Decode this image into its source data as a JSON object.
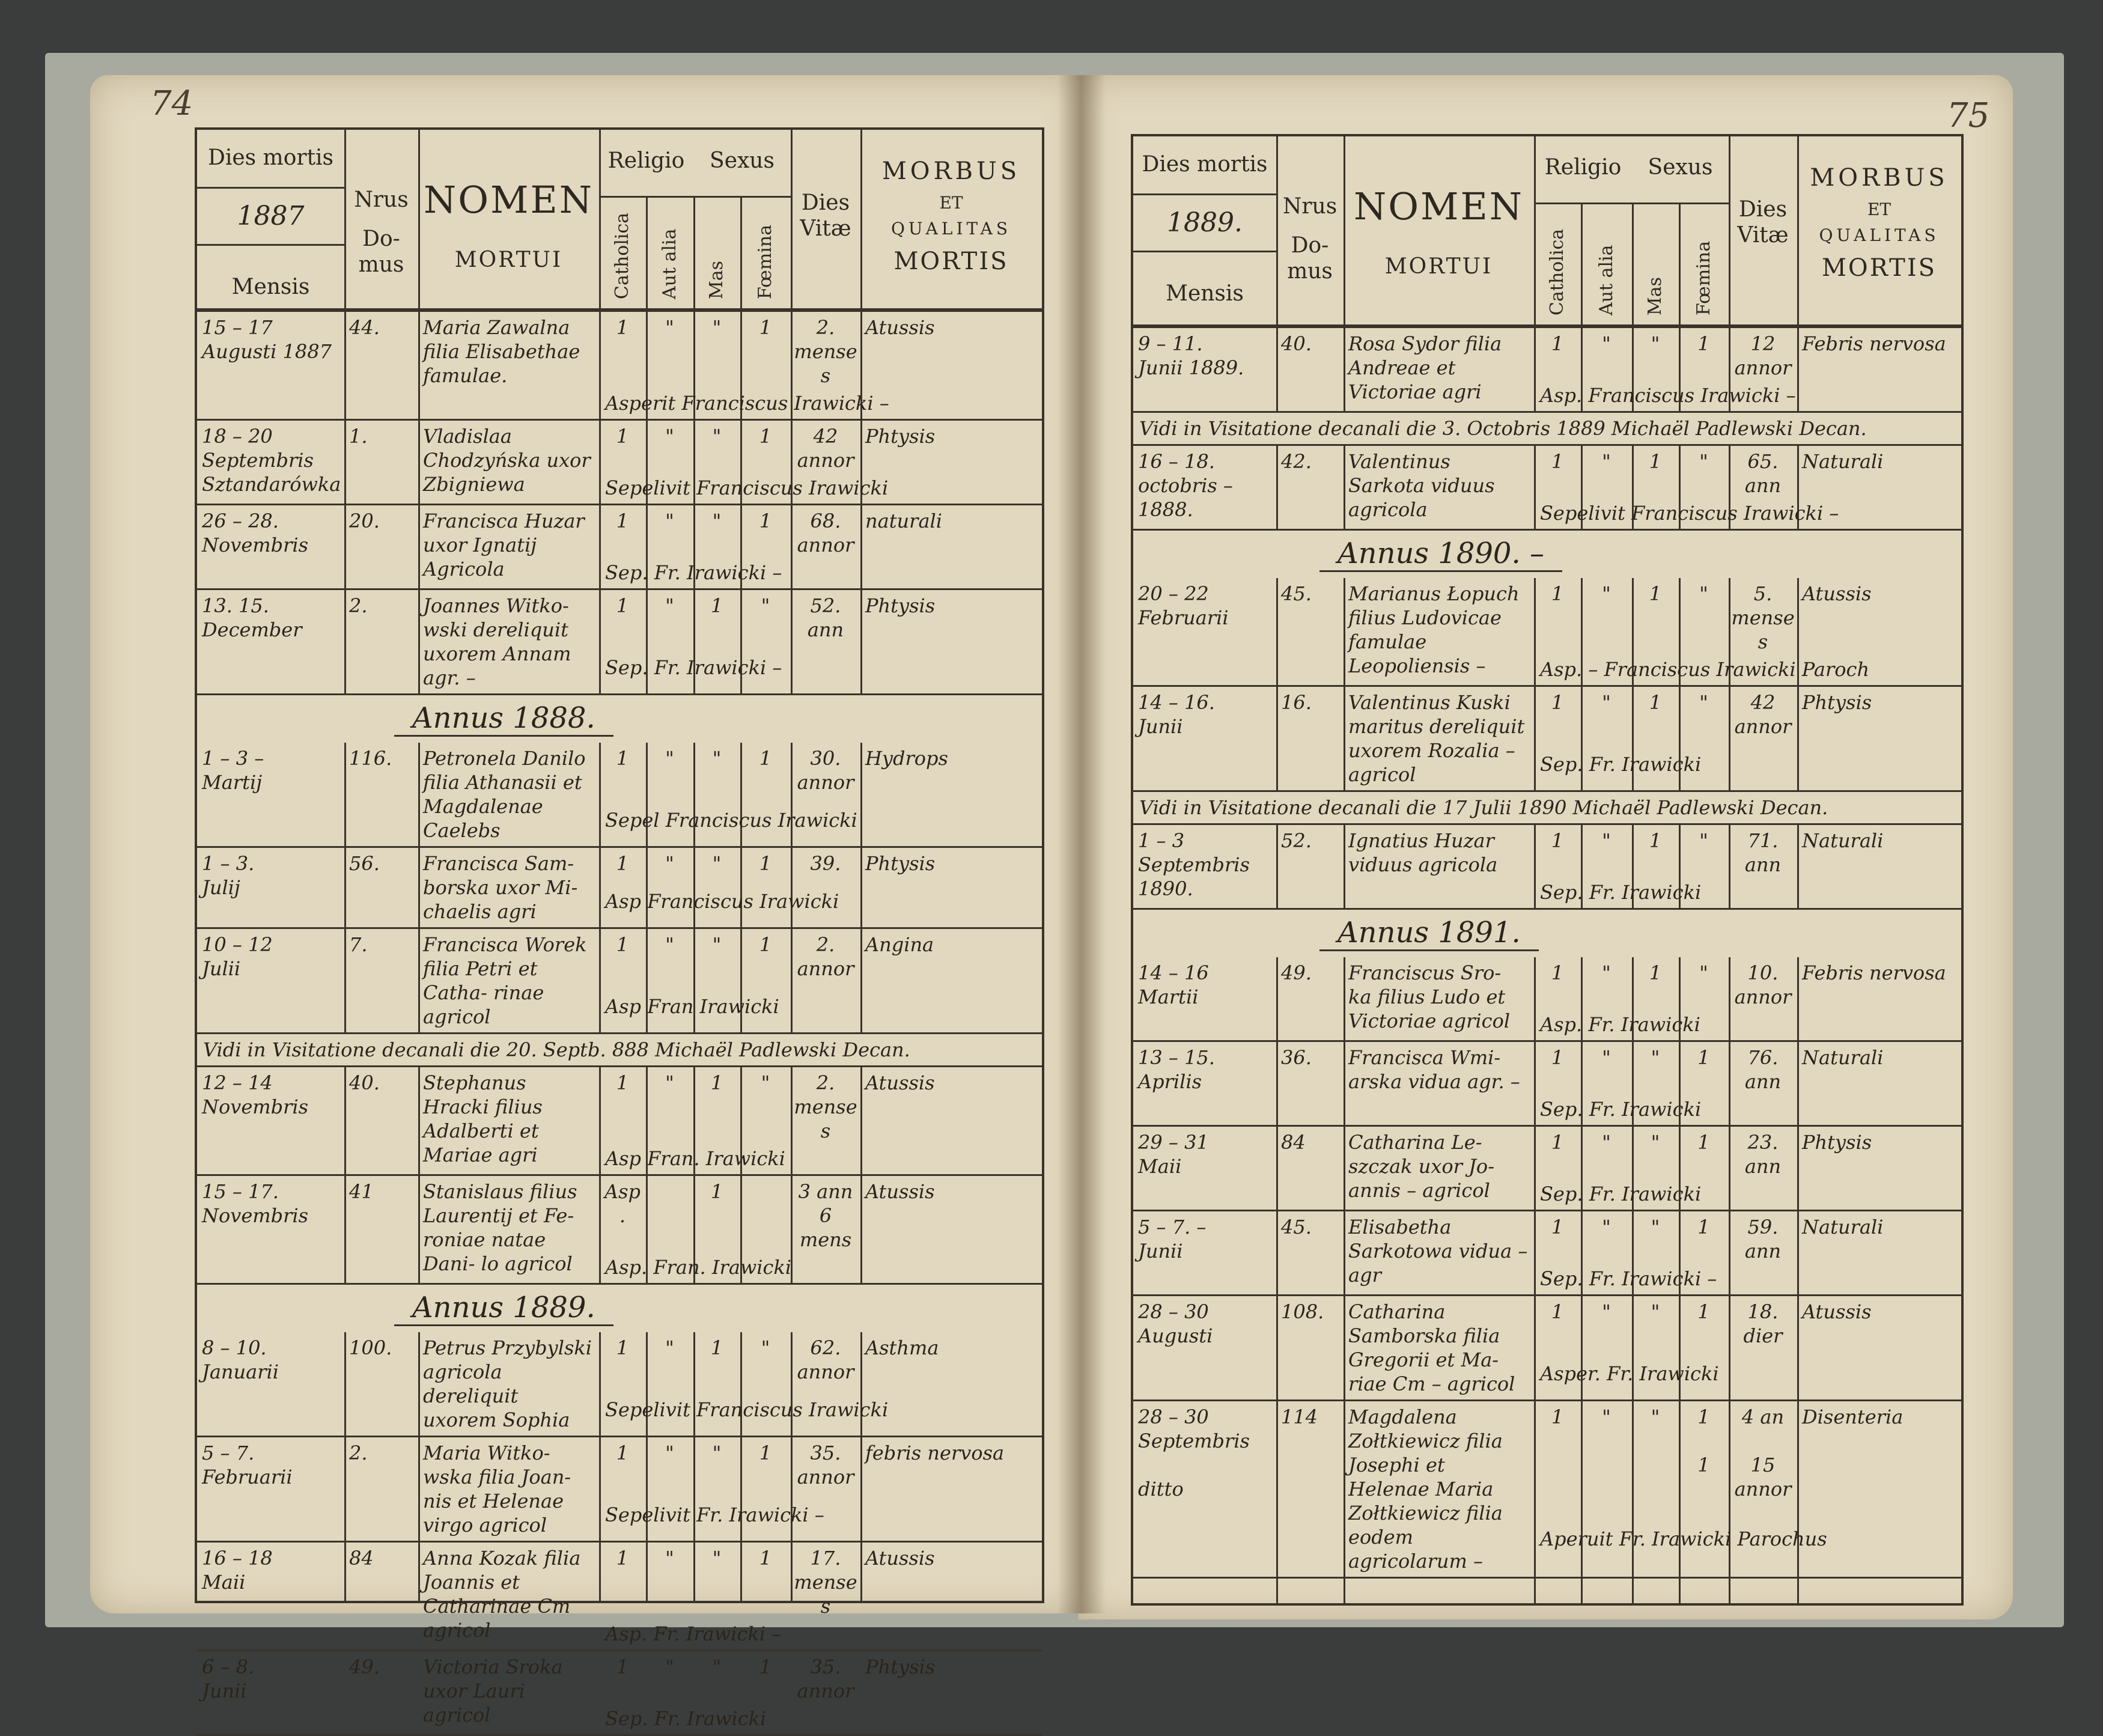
{
  "header": {
    "dies_mortis": "Dies mortis",
    "mensis": "Mensis",
    "nrus": "Nrus",
    "domus": "Do-\nmus",
    "nomen": "NOMEN",
    "mortui": "MORTUI",
    "religio": "Religio",
    "sexus": "Sexus",
    "catholica": "Catholica",
    "aut_alia": "Aut alia",
    "mas": "Mas",
    "foemina": "Fœmina",
    "dies_vitae": "Dies\nVitæ",
    "morbus": "MORBUS",
    "et": "ET",
    "qualitas": "QUALITAS",
    "mortis": "MORTIS"
  },
  "left": {
    "page_number": "74",
    "year": "1887",
    "rows": [
      {
        "date": "15 – 17\nAugusti 1887",
        "house": "44.",
        "name": "Maria Zawalna\nfilia Elisabethae\nfamulae.",
        "cath": "1",
        "alia": "\"",
        "mas": "\"",
        "fem": "1",
        "vitae": "2.\nmenses",
        "morbus": "Atussis",
        "note": "Asperit Franciscus Irawicki –"
      },
      {
        "date": "18 – 20\nSeptembris\nSztandarówka",
        "house": "1.",
        "name": "Vladislaa Chodzyńska uxor\nZbigniewa",
        "cath": "1",
        "alia": "\"",
        "mas": "\"",
        "fem": "1",
        "vitae": "42\nannor",
        "morbus": "Phtysis",
        "note": "Sepelivit Franciscus Irawicki"
      },
      {
        "date": "26 – 28.\nNovembris",
        "house": "20.",
        "name": "Francisca Huzar\nuxor Ignatij\nAgricola",
        "cath": "1",
        "alia": "\"",
        "mas": "\"",
        "fem": "1",
        "vitae": "68.\nannor",
        "morbus": "naturali",
        "note": "Sep. Fr. Irawicki –"
      },
      {
        "date": "13. 15.\nDecember",
        "house": "2.",
        "name": "Joannes Witko-\nwski dereliquit\nuxorem Annam\nagr. –",
        "cath": "1",
        "alia": "\"",
        "mas": "1",
        "fem": "\"",
        "vitae": "52.\nann",
        "morbus": "Phtysis",
        "note": "Sep. Fr. Irawicki –"
      },
      {
        "annus": "Annus 1888."
      },
      {
        "date": "1 – 3 –\nMartij",
        "house": "116.",
        "name": "Petronela Danilo\nfilia Athanasii\net Magdalenae\nCaelebs",
        "cath": "1",
        "alia": "\"",
        "mas": "\"",
        "fem": "1",
        "vitae": "30.\nannor",
        "morbus": "Hydrops",
        "note": "Sepel Franciscus Irawicki"
      },
      {
        "date": "1 – 3.\nJulij",
        "house": "56.",
        "name": "Francisca Sam-\nborska uxor Mi-\nchaelis agri",
        "cath": "1",
        "alia": "\"",
        "mas": "\"",
        "fem": "1",
        "vitae": "39.",
        "morbus": "Phtysis",
        "note": "Asp Franciscus Irawicki"
      },
      {
        "date": "10 – 12\nJulii",
        "house": "7.",
        "name": "Francisca Worek\nfilia Petri et Catha-\nrinae agricol",
        "cath": "1",
        "alia": "\"",
        "mas": "\"",
        "fem": "1",
        "vitae": "2.\nannor",
        "morbus": "Angina",
        "note": "Asp Fran Irawicki"
      },
      {
        "visit": "Vidi in Visitatione decanali die 20. Septb. 888 Michaël Padlewski Decan."
      },
      {
        "date": "12 – 14\nNovembris",
        "house": "40.",
        "name": "Stephanus\nHracki filius\nAdalberti et\nMariae agri",
        "cath": "1",
        "alia": "\"",
        "mas": "1",
        "fem": "\"",
        "vitae": "2.\nmenses",
        "morbus": "Atussis",
        "note": "Asp Fran. Irawicki"
      },
      {
        "date": "15 – 17.\nNovembris",
        "house": "41",
        "name": "Stanislaus filius\nLaurentij et Fe-\nroniae natae Dani-\nlo agricol",
        "cath": "Asp.",
        "alia": "",
        "mas": "1",
        "fem": "",
        "vitae": "3 ann\n6 mens",
        "morbus": "Atussis",
        "note": "Asp. Fran. Irawicki"
      },
      {
        "annus": "Annus 1889."
      },
      {
        "date": "8 – 10.\nJanuarii",
        "house": "100.",
        "name": "Petrus Przybylski\nagricola dereliquit\nuxorem Sophia",
        "cath": "1",
        "alia": "\"",
        "mas": "1",
        "fem": "\"",
        "vitae": "62.\nannor",
        "morbus": "Asthma",
        "note": "Sepelivit Franciscus Irawicki"
      },
      {
        "date": "5 – 7.\nFebruarii",
        "house": "2.",
        "name": "Maria Witko-\nwska filia Joan-\nnis et Helenae\nvirgo agricol",
        "cath": "1",
        "alia": "\"",
        "mas": "\"",
        "fem": "1",
        "vitae": "35.\nannor",
        "morbus": "febris nervosa",
        "note": "Sepelivit Fr. Irawicki –"
      },
      {
        "date": "16 – 18\nMaii",
        "house": "84",
        "name": "Anna Kozak\nfilia Joannis et\nCatharinae Cm\nagricol",
        "cath": "1",
        "alia": "\"",
        "mas": "\"",
        "fem": "1",
        "vitae": "17.\nmenses",
        "morbus": "Atussis",
        "note": "Asp. Fr. Irawicki –"
      },
      {
        "date": "6 – 8.\nJunii",
        "house": "49.",
        "name": "Victoria Sroka\nuxor Lauri agricol",
        "cath": "1",
        "alia": "\"",
        "mas": "\"",
        "fem": "1",
        "vitae": "35.\nannor",
        "morbus": "Phtysis",
        "note": "Sep. Fr. Irawicki"
      }
    ]
  },
  "right": {
    "page_number": "75",
    "year": "1889.",
    "rows": [
      {
        "date": "9 – 11.\nJunii 1889.",
        "house": "40.",
        "name": "Rosa Sydor\nfilia Andreae\net Victoriae agri",
        "cath": "1",
        "alia": "\"",
        "mas": "\"",
        "fem": "1",
        "vitae": "12\nannor",
        "morbus": "Febris nervosa",
        "note": "Asp. Franciscus Irawicki –"
      },
      {
        "visit": "Vidi in Visitatione decanali die 3. Octobris 1889  Michaël Padlewski Decan."
      },
      {
        "date": "16 – 18.\noctobris –\n1888.",
        "house": "42.",
        "name": "Valentinus\nSarkota viduus\nagricola",
        "cath": "1",
        "alia": "\"",
        "mas": "1",
        "fem": "\"",
        "vitae": "65.\nann",
        "morbus": "Naturali",
        "note": "Sepelivit Franciscus Irawicki –"
      },
      {
        "annus": "Annus 1890. –"
      },
      {
        "date": "20 – 22\nFebruarii",
        "house": "45.",
        "name": "Marianus\nŁopuch filius\nLudovicae famulae\nLeopoliensis –",
        "cath": "1",
        "alia": "\"",
        "mas": "1",
        "fem": "\"",
        "vitae": "5.\nmenses",
        "morbus": "Atussis",
        "note": "Asp. – Franciscus Irawicki Paroch"
      },
      {
        "date": "14 – 16.\nJunii",
        "house": "16.",
        "name": "Valentinus\nKuski maritus\ndereliquit uxorem\nRozalia – agricol",
        "cath": "1",
        "alia": "\"",
        "mas": "1",
        "fem": "\"",
        "vitae": "42\nannor",
        "morbus": "Phtysis",
        "note": "Sep. Fr. Irawicki"
      },
      {
        "visit": "Vidi in Visitatione decanali die 17 Julii 1890  Michaël Padlewski Decan."
      },
      {
        "date": "1 – 3\nSeptembris\n1890.",
        "house": "52.",
        "name": "Ignatius\nHuzar viduus\nagricola",
        "cath": "1",
        "alia": "\"",
        "mas": "1",
        "fem": "\"",
        "vitae": "71.\nann",
        "morbus": "Naturali",
        "note": "Sep. Fr. Irawicki"
      },
      {
        "annus": "Annus 1891."
      },
      {
        "date": "14 – 16\nMartii",
        "house": "49.",
        "name": "Franciscus Sro-\nka filius Ludo\net Victoriae agricol",
        "cath": "1",
        "alia": "\"",
        "mas": "1",
        "fem": "\"",
        "vitae": "10.\nannor",
        "morbus": "Febris nervosa",
        "note": "Asp. Fr. Irawicki"
      },
      {
        "date": "13 – 15.\nAprilis",
        "house": "36.",
        "name": "Francisca Wmi-\narska vidua\nagr. –",
        "cath": "1",
        "alia": "\"",
        "mas": "\"",
        "fem": "1",
        "vitae": "76.\nann",
        "morbus": "Naturali",
        "note": "Sep. Fr. Irawicki"
      },
      {
        "date": "29 – 31\nMaii",
        "house": "84",
        "name": "Catharina Le-\nszczak uxor Jo-\nannis – agricol",
        "cath": "1",
        "alia": "\"",
        "mas": "\"",
        "fem": "1",
        "vitae": "23.\nann",
        "morbus": "Phtysis",
        "note": "Sep. Fr. Irawicki"
      },
      {
        "date": "5 – 7. –\nJunii",
        "house": "45.",
        "name": "Elisabetha\nSarkotowa\nvidua – agr",
        "cath": "1",
        "alia": "\"",
        "mas": "\"",
        "fem": "1",
        "vitae": "59.\nann",
        "morbus": "Naturali",
        "note": "Sep. Fr. Irawicki –"
      },
      {
        "date": "28 – 30\nAugusti",
        "house": "108.",
        "name": "Catharina\nSamborska filia\nGregorii et Ma-\nriae Cm – agricol",
        "cath": "1",
        "alia": "\"",
        "mas": "\"",
        "fem": "1",
        "vitae": "18.\ndier",
        "morbus": "Atussis",
        "note": "Asper. Fr. Irawicki"
      },
      {
        "date": "28 – 30\nSeptembris\n\nditto",
        "house": "114",
        "name": "Magdalena\nZołtkiewicz filia\nJosephi et Helenae\nMaria Zołtkiewicz\nfilia eodem\nagricolarum –",
        "cath": "1",
        "alia": "\"",
        "mas": "\"",
        "fem": "1\n\n1",
        "vitae": "4 an\n\n15\nannor",
        "morbus": "Disenteria",
        "note": "Aperuit Fr. Irawicki Parochus"
      }
    ]
  }
}
